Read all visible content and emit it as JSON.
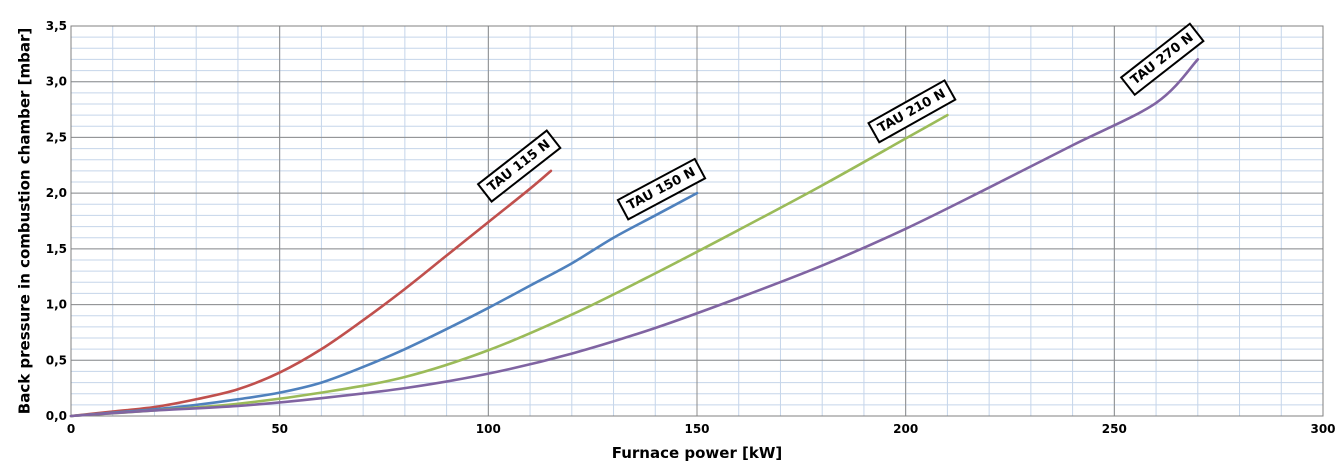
{
  "chart_data": {
    "type": "line",
    "title": "",
    "xlabel": "Furnace power [kW]",
    "ylabel": "Back pressure in combustion chamber [mbar]",
    "xlim": [
      0,
      300
    ],
    "ylim": [
      0,
      3.5
    ],
    "x_ticks": [
      "0",
      "50",
      "100",
      "150",
      "200",
      "250",
      "300"
    ],
    "y_ticks": [
      "0,0",
      "0,5",
      "1,0",
      "1,5",
      "2,0",
      "2,5",
      "3,0",
      "3,5"
    ],
    "grid": true,
    "legend": "inline labels",
    "series": [
      {
        "name": "TAU 115 N",
        "color": "#c0504d",
        "x": [
          0,
          10,
          20,
          30,
          40,
          50,
          60,
          70,
          80,
          90,
          100,
          110,
          115
        ],
        "y": [
          0,
          0.04,
          0.08,
          0.15,
          0.24,
          0.39,
          0.6,
          0.86,
          1.14,
          1.44,
          1.74,
          2.04,
          2.2
        ]
      },
      {
        "name": "TAU 150 N",
        "color": "#4f81bd",
        "x": [
          0,
          10,
          20,
          30,
          40,
          50,
          60,
          70,
          80,
          90,
          100,
          110,
          120,
          130,
          140,
          150
        ],
        "y": [
          0,
          0.03,
          0.06,
          0.1,
          0.15,
          0.21,
          0.3,
          0.44,
          0.6,
          0.78,
          0.97,
          1.17,
          1.37,
          1.6,
          1.8,
          2.0
        ]
      },
      {
        "name": "TAU 210 N",
        "color": "#9bbb59",
        "x": [
          0,
          20,
          40,
          60,
          80,
          100,
          120,
          140,
          160,
          180,
          200,
          210
        ],
        "y": [
          0,
          0.05,
          0.11,
          0.21,
          0.35,
          0.59,
          0.91,
          1.28,
          1.67,
          2.07,
          2.49,
          2.7
        ]
      },
      {
        "name": "TAU 270 N",
        "color": "#8064a2",
        "x": [
          0,
          20,
          40,
          60,
          80,
          100,
          120,
          140,
          160,
          180,
          200,
          220,
          240,
          260,
          270
        ],
        "y": [
          0,
          0.05,
          0.09,
          0.16,
          0.25,
          0.38,
          0.56,
          0.79,
          1.06,
          1.35,
          1.68,
          2.05,
          2.43,
          2.81,
          3.2
        ]
      }
    ]
  }
}
